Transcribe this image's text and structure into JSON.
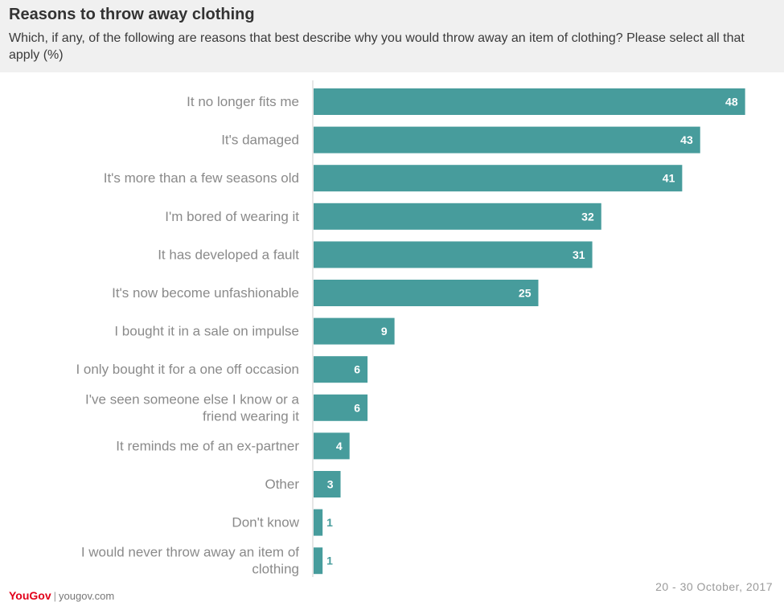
{
  "header": {
    "title": "Reasons to throw away clothing",
    "subtitle": "Which, if any, of the following are reasons that best describe why you would throw away an item of clothing? Please select all that apply (%)"
  },
  "footer": {
    "brand": "YouGov",
    "site": "yougov.com",
    "date": "20 - 30 October, 2017"
  },
  "colors": {
    "bar": "#479c9c",
    "label": "#8a8a8a",
    "value_inside": "#ffffff",
    "value_outside": "#479c9c"
  },
  "chart_data": {
    "type": "bar",
    "orientation": "horizontal",
    "categories": [
      "It no longer fits me",
      "It's damaged",
      "It's more than a few seasons old",
      "I'm bored of wearing it",
      "It has developed a fault",
      "It's now become unfashionable",
      "I bought it in a sale on impulse",
      "I only bought it for a one off occasion",
      "I've seen someone else I know or a friend wearing it",
      "It reminds me of an ex-partner",
      "Other",
      "Don't know",
      "I would never throw away an item of clothing"
    ],
    "values": [
      48,
      43,
      41,
      32,
      31,
      25,
      9,
      6,
      6,
      4,
      3,
      1,
      1
    ],
    "data_labels": true,
    "xlim": [
      0,
      50
    ]
  }
}
